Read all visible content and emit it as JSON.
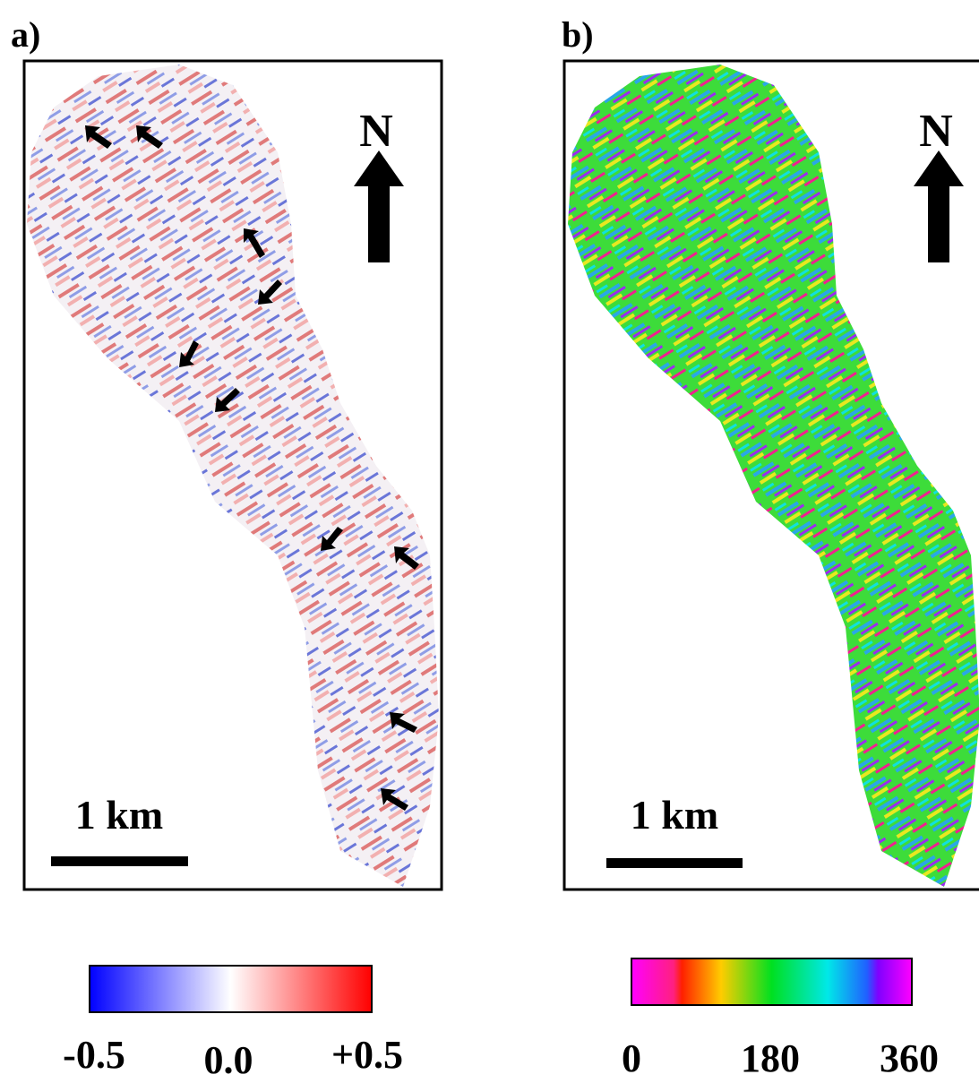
{
  "panels": [
    {
      "label": "a)",
      "north": "N",
      "scale": "1 km",
      "colorbar": {
        "ticks": [
          "-0.5",
          "0.0",
          "+0.5"
        ]
      }
    },
    {
      "label": "b)",
      "north": "N",
      "scale": "1 km",
      "colorbar": {
        "ticks": [
          "0",
          "180",
          "360"
        ]
      }
    }
  ]
}
